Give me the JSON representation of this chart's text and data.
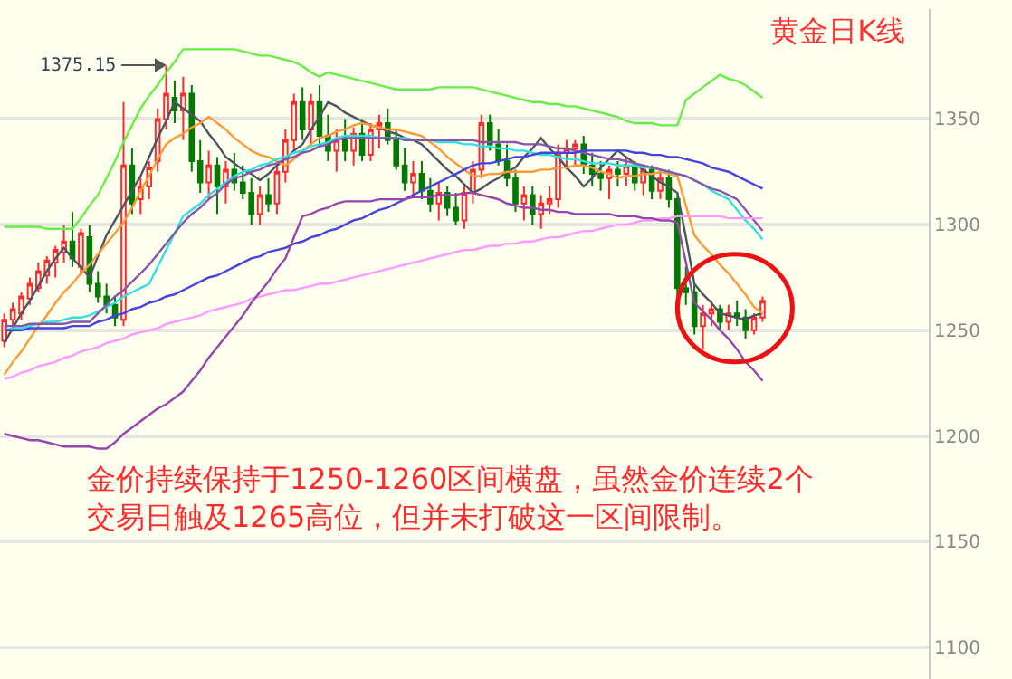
{
  "chart_data": {
    "type": "candlestick",
    "title": "黄金日K线",
    "categories": [
      null,
      null,
      null,
      null,
      null,
      null,
      null,
      null,
      null,
      null,
      null,
      null,
      null,
      null,
      null,
      null,
      null,
      null,
      null,
      null,
      null,
      null,
      null,
      null,
      null,
      null,
      null,
      null,
      null,
      null,
      null,
      null,
      null,
      null,
      null,
      null,
      null,
      null,
      null,
      null,
      null,
      null,
      null,
      null,
      null,
      null,
      null,
      null,
      null,
      null,
      null,
      null,
      null,
      null,
      null,
      null,
      null,
      null,
      null,
      null,
      null,
      null,
      null,
      null,
      null,
      null,
      null,
      null,
      null,
      null,
      null,
      null,
      null,
      null,
      null,
      null,
      null,
      null,
      null,
      null,
      null,
      null,
      null,
      null,
      null,
      null,
      null,
      null,
      null,
      null,
      null,
      null,
      null,
      null,
      null,
      null,
      null,
      null,
      null,
      null,
      null,
      null,
      null,
      null,
      null,
      null,
      null,
      null,
      null
    ],
    "ohlc": [
      [
        1245,
        1258,
        1242,
        1255
      ],
      [
        1255,
        1263,
        1250,
        1260
      ],
      [
        1258,
        1268,
        1255,
        1266
      ],
      [
        1265,
        1275,
        1262,
        1272
      ],
      [
        1270,
        1282,
        1268,
        1278
      ],
      [
        1276,
        1285,
        1272,
        1283
      ],
      [
        1282,
        1290,
        1275,
        1288
      ],
      [
        1287,
        1300,
        1282,
        1292
      ],
      [
        1292,
        1306,
        1280,
        1284
      ],
      [
        1280,
        1298,
        1276,
        1296
      ],
      [
        1294,
        1300,
        1268,
        1272
      ],
      [
        1272,
        1278,
        1263,
        1266
      ],
      [
        1266,
        1272,
        1258,
        1262
      ],
      [
        1262,
        1266,
        1252,
        1256
      ],
      [
        1255,
        1358,
        1252,
        1328
      ],
      [
        1328,
        1336,
        1305,
        1310
      ],
      [
        1312,
        1322,
        1305,
        1318
      ],
      [
        1318,
        1330,
        1312,
        1327
      ],
      [
        1330,
        1355,
        1325,
        1350
      ],
      [
        1350,
        1375.15,
        1345,
        1362
      ],
      [
        1360,
        1368,
        1348,
        1354
      ],
      [
        1354,
        1370,
        1340,
        1362
      ],
      [
        1362,
        1366,
        1325,
        1330
      ],
      [
        1330,
        1340,
        1315,
        1320
      ],
      [
        1320,
        1335,
        1312,
        1328
      ],
      [
        1328,
        1332,
        1305,
        1318
      ],
      [
        1318,
        1330,
        1310,
        1326
      ],
      [
        1326,
        1334,
        1316,
        1320
      ],
      [
        1320,
        1328,
        1312,
        1315
      ],
      [
        1315,
        1322,
        1300,
        1305
      ],
      [
        1305,
        1318,
        1300,
        1314
      ],
      [
        1314,
        1322,
        1306,
        1310
      ],
      [
        1310,
        1328,
        1305,
        1325
      ],
      [
        1325,
        1345,
        1320,
        1340
      ],
      [
        1340,
        1362,
        1335,
        1358
      ],
      [
        1358,
        1365,
        1340,
        1345
      ],
      [
        1345,
        1362,
        1338,
        1358
      ],
      [
        1358,
        1366,
        1338,
        1342
      ],
      [
        1342,
        1352,
        1330,
        1335
      ],
      [
        1335,
        1345,
        1325,
        1340
      ],
      [
        1340,
        1350,
        1330,
        1335
      ],
      [
        1335,
        1346,
        1328,
        1343
      ],
      [
        1343,
        1350,
        1330,
        1333
      ],
      [
        1333,
        1348,
        1330,
        1345
      ],
      [
        1345,
        1352,
        1336,
        1348
      ],
      [
        1348,
        1355,
        1338,
        1340
      ],
      [
        1340,
        1345,
        1326,
        1328
      ],
      [
        1328,
        1336,
        1316,
        1320
      ],
      [
        1320,
        1330,
        1314,
        1324
      ],
      [
        1324,
        1330,
        1312,
        1316
      ],
      [
        1316,
        1322,
        1306,
        1310
      ],
      [
        1310,
        1320,
        1302,
        1315
      ],
      [
        1315,
        1318,
        1304,
        1308
      ],
      [
        1308,
        1315,
        1300,
        1302
      ],
      [
        1302,
        1318,
        1298,
        1315
      ],
      [
        1315,
        1330,
        1310,
        1326
      ],
      [
        1326,
        1352,
        1322,
        1348
      ],
      [
        1348,
        1352,
        1335,
        1338
      ],
      [
        1338,
        1345,
        1328,
        1330
      ],
      [
        1330,
        1338,
        1318,
        1322
      ],
      [
        1322,
        1326,
        1306,
        1310
      ],
      [
        1310,
        1318,
        1302,
        1314
      ],
      [
        1314,
        1318,
        1300,
        1305
      ],
      [
        1305,
        1314,
        1298,
        1310
      ],
      [
        1310,
        1318,
        1305,
        1312
      ],
      [
        1312,
        1338,
        1308,
        1334
      ],
      [
        1334,
        1340,
        1326,
        1336
      ],
      [
        1336,
        1340,
        1328,
        1338
      ],
      [
        1338,
        1342,
        1324,
        1328
      ],
      [
        1328,
        1334,
        1318,
        1324
      ],
      [
        1324,
        1330,
        1316,
        1322
      ],
      [
        1322,
        1328,
        1312,
        1326
      ],
      [
        1326,
        1330,
        1318,
        1324
      ],
      [
        1324,
        1332,
        1318,
        1328
      ],
      [
        1328,
        1330,
        1316,
        1320
      ],
      [
        1320,
        1328,
        1314,
        1326
      ],
      [
        1326,
        1328,
        1312,
        1316
      ],
      [
        1316,
        1326,
        1312,
        1322
      ],
      [
        1322,
        1326,
        1308,
        1312
      ],
      [
        1312,
        1314,
        1266,
        1270
      ],
      [
        1270,
        1280,
        1262,
        1268
      ],
      [
        1268,
        1272,
        1248,
        1252
      ],
      [
        1252,
        1262,
        1241,
        1258
      ],
      [
        1258,
        1264,
        1252,
        1260
      ],
      [
        1260,
        1262,
        1250,
        1254
      ],
      [
        1254,
        1262,
        1250,
        1258
      ],
      [
        1258,
        1264,
        1252,
        1256
      ],
      [
        1256,
        1260,
        1246,
        1250
      ],
      [
        1250,
        1258,
        1248,
        1256
      ],
      [
        1256,
        1266,
        1254,
        1264
      ],
      null,
      null,
      null,
      null,
      null,
      null,
      null,
      null,
      null,
      null,
      null,
      null,
      null,
      null,
      null,
      null,
      null,
      null,
      null
    ],
    "series": [
      {
        "type": "line",
        "color": "#4a5560",
        "values": [
          1244,
          1251,
          1258,
          1264,
          1271,
          1278,
          1284,
          1289,
          1284,
          1280,
          1275,
          1285,
          1295,
          1302,
          1309,
          1316,
          1323,
          1332,
          1341,
          1349,
          1358,
          1355,
          1352,
          1349,
          1343,
          1338,
          1332,
          1329,
          1326,
          1324,
          1321,
          1324,
          1328,
          1331,
          1335,
          1338,
          1345,
          1351,
          1358,
          1356,
          1353,
          1351,
          1349,
          1347,
          1346,
          1344,
          1343,
          1341,
          1340,
          1338,
          1334,
          1330,
          1326,
          1323,
          1319,
          1315,
          1317,
          1320,
          1322,
          1325,
          1327,
          1332,
          1336,
          1341,
          1336,
          1332,
          1327,
          1323,
          1318,
          1322,
          1327,
          1331,
          1335,
          1332,
          1329,
          1326,
          1323,
          1320,
          1318,
          1315,
          1294,
          1272,
          1267,
          1263,
          1258,
          1257,
          1256,
          1255,
          1257,
          1258,
          null,
          null,
          null,
          null,
          null,
          null,
          null,
          null,
          null,
          null,
          null,
          null,
          null,
          null,
          null,
          null,
          null,
          null,
          null
        ]
      },
      {
        "type": "line",
        "color": "#ff9933",
        "values": [
          1229,
          1235,
          1240,
          1246,
          1252,
          1257,
          1263,
          1268,
          1272,
          1277,
          1281,
          1286,
          1291,
          1296,
          1301,
          1308,
          1316,
          1323,
          1331,
          1338,
          1341,
          1343,
          1346,
          1348,
          1351,
          1348,
          1345,
          1341,
          1338,
          1335,
          1333,
          1332,
          1330,
          1328,
          1331,
          1335,
          1338,
          1341,
          1342,
          1344,
          1345,
          1347,
          1348,
          1347,
          1346,
          1345,
          1345,
          1344,
          1343,
          1342,
          1339,
          1336,
          1332,
          1329,
          1326,
          1323,
          1323,
          1324,
          1324,
          1325,
          1325,
          1325,
          1325,
          1326,
          1326,
          1327,
          1327,
          1328,
          1328,
          1327,
          1325,
          1324,
          1322,
          1323,
          1323,
          1324,
          1324,
          1325,
          1324,
          1323,
          1309,
          1295,
          1290,
          1286,
          1281,
          1277,
          1272,
          1267,
          1261,
          1258,
          null,
          null,
          null,
          null,
          null,
          null,
          null,
          null,
          null,
          null,
          null,
          null,
          null,
          null,
          null,
          null,
          null,
          null,
          null
        ]
      },
      {
        "type": "line",
        "color": "#33e0e0",
        "values": [
          1250,
          1251,
          1251,
          1252,
          1253,
          1254,
          1254,
          1255,
          1256,
          1256,
          1257,
          1259,
          1261,
          1263,
          1266,
          1268,
          1270,
          1272,
          1280,
          1288,
          1296,
          1304,
          1307,
          1310,
          1314,
          1317,
          1320,
          1323,
          1325,
          1326,
          1328,
          1329,
          1331,
          1332,
          1334,
          1335,
          1337,
          1338,
          1339,
          1341,
          1342,
          1342,
          1342,
          1342,
          1341,
          1341,
          1341,
          1341,
          1340,
          1340,
          1340,
          1339,
          1339,
          1339,
          1338,
          1338,
          1337,
          1337,
          1336,
          1336,
          1335,
          1335,
          1334,
          1333,
          1333,
          1332,
          1331,
          1331,
          1330,
          1329,
          1329,
          1329,
          1328,
          1328,
          1328,
          1327,
          1327,
          1326,
          1325,
          1324,
          1323,
          1321,
          1319,
          1316,
          1314,
          1312,
          1307,
          1302,
          1298,
          1293,
          null,
          null,
          null,
          null,
          null,
          null,
          null,
          null,
          null,
          null,
          null,
          null,
          null,
          null,
          null,
          null,
          null,
          null,
          null
        ]
      },
      {
        "type": "line",
        "color": "#8855aa",
        "values": [
          1252,
          1252,
          1252,
          1253,
          1253,
          1253,
          1253,
          1253,
          1254,
          1254,
          1254,
          1258,
          1262,
          1266,
          1269,
          1273,
          1277,
          1281,
          1286,
          1291,
          1296,
          1301,
          1305,
          1308,
          1312,
          1315,
          1319,
          1322,
          1323,
          1325,
          1326,
          1328,
          1329,
          1331,
          1332,
          1334,
          1335,
          1337,
          1338,
          1340,
          1341,
          1341,
          1341,
          1341,
          1341,
          1341,
          1341,
          1340,
          1340,
          1340,
          1340,
          1340,
          1340,
          1340,
          1340,
          1340,
          1339,
          1339,
          1339,
          1339,
          1339,
          1338,
          1338,
          1338,
          1337,
          1336,
          1336,
          1335,
          1334,
          1333,
          1332,
          1331,
          1331,
          1330,
          1329,
          1328,
          1327,
          1326,
          1325,
          1324,
          1323,
          1321,
          1319,
          1317,
          1316,
          1314,
          1312,
          1307,
          1302,
          1297,
          null,
          null,
          null,
          null,
          null,
          null,
          null,
          null,
          null,
          null,
          null,
          null,
          null,
          null,
          null,
          null,
          null,
          null,
          null
        ]
      },
      {
        "type": "line",
        "color": "#4444dd",
        "values": [
          1250,
          1250,
          1250,
          1251,
          1251,
          1251,
          1251,
          1251,
          1252,
          1252,
          1252,
          1254,
          1255,
          1257,
          1258,
          1260,
          1261,
          1263,
          1264,
          1266,
          1267,
          1269,
          1271,
          1273,
          1275,
          1276,
          1278,
          1280,
          1282,
          1284,
          1285,
          1287,
          1288,
          1289,
          1291,
          1292,
          1294,
          1295,
          1297,
          1298,
          1300,
          1302,
          1303,
          1305,
          1307,
          1308,
          1310,
          1312,
          1314,
          1316,
          1318,
          1320,
          1322,
          1324,
          1326,
          1328,
          1329,
          1329,
          1330,
          1331,
          1332,
          1332,
          1333,
          1334,
          1334,
          1334,
          1334,
          1334,
          1335,
          1335,
          1335,
          1335,
          1335,
          1335,
          1334,
          1334,
          1333,
          1333,
          1332,
          1332,
          1331,
          1330,
          1329,
          1327,
          1326,
          1325,
          1323,
          1321,
          1319,
          1317,
          null,
          null,
          null,
          null,
          null,
          null,
          null,
          null,
          null,
          null,
          null,
          null,
          null,
          null,
          null,
          null,
          null,
          null,
          null
        ]
      },
      {
        "type": "line",
        "color": "#ff99ff",
        "values": [
          1227,
          1228,
          1230,
          1231,
          1233,
          1234,
          1235,
          1237,
          1238,
          1240,
          1241,
          1242,
          1244,
          1245,
          1246,
          1248,
          1249,
          1250,
          1251,
          1253,
          1254,
          1255,
          1256,
          1257,
          1259,
          1260,
          1261,
          1262,
          1263,
          1265,
          1266,
          1267,
          1268,
          1269,
          1269,
          1270,
          1271,
          1272,
          1272,
          1273,
          1274,
          1275,
          1276,
          1277,
          1278,
          1279,
          1280,
          1281,
          1282,
          1283,
          1284,
          1285,
          1286,
          1287,
          1288,
          1288,
          1289,
          1290,
          1290,
          1291,
          1291,
          1292,
          1292,
          1293,
          1294,
          1294,
          1295,
          1296,
          1297,
          1297,
          1298,
          1299,
          1300,
          1300,
          1301,
          1302,
          1302,
          1303,
          1303,
          1304,
          1304,
          1304,
          1304,
          1304,
          1304,
          1303,
          1303,
          1303,
          1303,
          1303,
          null,
          null,
          null,
          null,
          null,
          null,
          null,
          null,
          null,
          null,
          null,
          null,
          null,
          null,
          null,
          null,
          null,
          null,
          null
        ]
      },
      {
        "type": "line",
        "color": "#66ee44",
        "values": [
          1299,
          1299,
          1299,
          1299,
          1299,
          1298,
          1298,
          1298,
          1298,
          1303,
          1309,
          1314,
          1322,
          1330,
          1339,
          1347,
          1355,
          1361,
          1366,
          1372,
          1377,
          1383,
          1383,
          1383,
          1383,
          1383,
          1383,
          1383,
          1382,
          1381,
          1380,
          1380,
          1379,
          1378,
          1377,
          1375,
          1372,
          1370,
          1372,
          1371,
          1370,
          1369,
          1368,
          1367,
          1366,
          1365,
          1364,
          1364,
          1364,
          1364,
          1364,
          1365,
          1365,
          1365,
          1365,
          1365,
          1364,
          1363,
          1362,
          1361,
          1360,
          1359,
          1358,
          1358,
          1357,
          1357,
          1356,
          1356,
          1355,
          1354,
          1353,
          1352,
          1351,
          1349,
          1348,
          1348,
          1348,
          1347,
          1347,
          1347,
          1359,
          1362,
          1365,
          1368,
          1371,
          1369,
          1368,
          1366,
          1363,
          1360,
          null,
          null,
          null,
          null,
          null,
          null,
          null,
          null,
          null,
          null,
          null,
          null,
          null,
          null,
          null,
          null,
          null,
          null,
          null
        ]
      },
      {
        "type": "line",
        "color": "#9944aa",
        "values": [
          1201,
          1200,
          1199,
          1198,
          1198,
          1197,
          1196,
          1195,
          1195,
          1195,
          1195,
          1194,
          1194,
          1197,
          1201,
          1204,
          1207,
          1210,
          1213,
          1215,
          1218,
          1221,
          1226,
          1231,
          1237,
          1242,
          1247,
          1252,
          1257,
          1263,
          1268,
          1273,
          1279,
          1284,
          1294,
          1304,
          1305,
          1307,
          1308,
          1310,
          1311,
          1311,
          1311,
          1311,
          1312,
          1312,
          1312,
          1312,
          1313,
          1313,
          1313,
          1314,
          1314,
          1314,
          1315,
          1315,
          1314,
          1313,
          1312,
          1310,
          1309,
          1308,
          1308,
          1307,
          1307,
          1306,
          1306,
          1305,
          1305,
          1305,
          1305,
          1305,
          1304,
          1304,
          1304,
          1303,
          1303,
          1302,
          1302,
          1301,
          1282,
          1263,
          1259,
          1255,
          1250,
          1246,
          1241,
          1235,
          1231,
          1226,
          null,
          null,
          null,
          null,
          null,
          null,
          null,
          null,
          null,
          null,
          null,
          null,
          null,
          null,
          null,
          null,
          null,
          null,
          null
        ]
      }
    ],
    "ylim": [
      1085,
      1402
    ],
    "yticks": [
      1100,
      1150,
      1200,
      1250,
      1300,
      1350
    ],
    "grid": "y",
    "tick_labels": "y",
    "annotations": [
      "1375.15",
      "金价持续保持于1250-1260区间横盘，虽然金价连续2个交易日触及1265高位，但并未打破这一区间限制。"
    ]
  }
}
